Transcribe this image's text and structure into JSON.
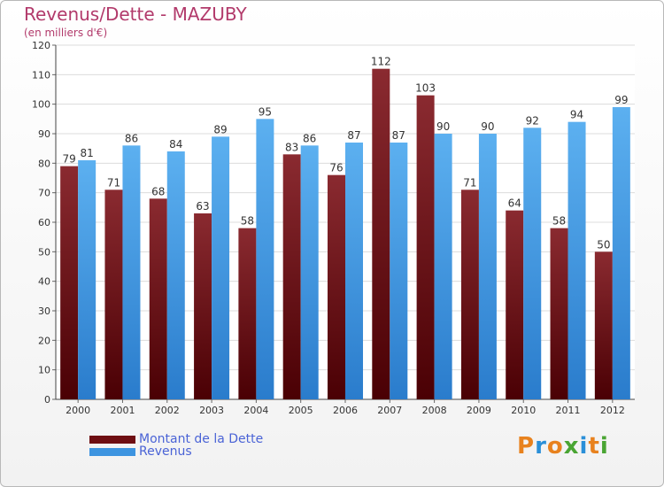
{
  "chart_data": {
    "type": "bar",
    "title": "Revenus/Dette - MAZUBY",
    "subtitle": "(en milliers d'€)",
    "categories": [
      "2000",
      "2001",
      "2002",
      "2003",
      "2004",
      "2005",
      "2006",
      "2007",
      "2008",
      "2009",
      "2010",
      "2011",
      "2012"
    ],
    "series": [
      {
        "name": "Montant de la Dette",
        "color": "#6e0e12",
        "values": [
          79,
          71,
          68,
          63,
          58,
          83,
          76,
          112,
          103,
          71,
          64,
          58,
          50
        ]
      },
      {
        "name": "Revenus",
        "color": "#3d94e0",
        "values": [
          81,
          86,
          84,
          89,
          95,
          86,
          87,
          87,
          90,
          90,
          92,
          94,
          99
        ]
      }
    ],
    "ylim": [
      0,
      120
    ],
    "yticks": [
      0,
      10,
      20,
      30,
      40,
      50,
      60,
      70,
      80,
      90,
      100,
      110,
      120
    ],
    "grid": true,
    "legend_position": "bottom-left"
  },
  "logo": {
    "text": "Proxiti",
    "letters": [
      "P",
      "r",
      "o",
      "x",
      "i",
      "t",
      "i"
    ],
    "colors": [
      "#e8821e",
      "#2a8fd8",
      "#e8821e",
      "#4aa533",
      "#2a8fd8",
      "#e8821e",
      "#4aa533"
    ]
  }
}
